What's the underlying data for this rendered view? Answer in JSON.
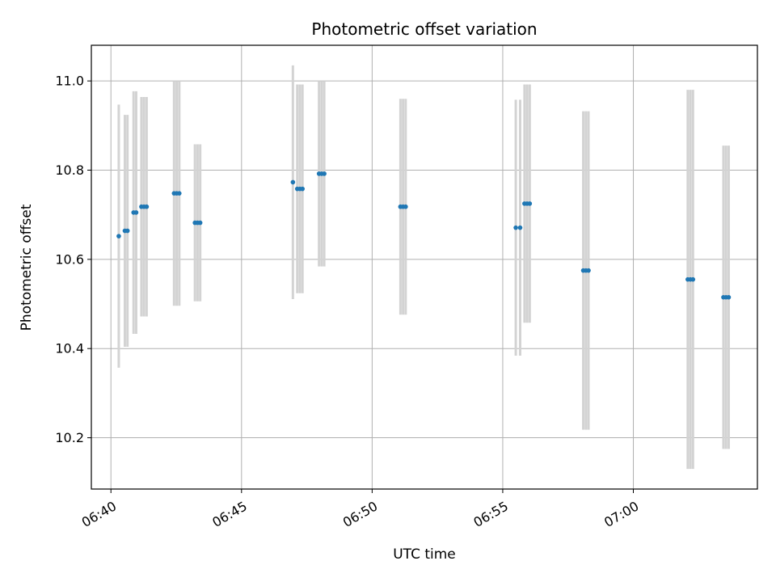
{
  "chart_data": {
    "type": "scatter",
    "title": "Photometric offset variation",
    "xlabel": "UTC time",
    "ylabel": "Photometric offset",
    "xlim": [
      "06:39:15",
      "07:04:45"
    ],
    "ylim": [
      10.085,
      11.08
    ],
    "x_ticks": [
      "06:40",
      "06:45",
      "06:50",
      "06:55",
      "07:00"
    ],
    "y_ticks": [
      "10.2",
      "10.4",
      "10.6",
      "10.8",
      "11.0"
    ],
    "grid": true,
    "colors": {
      "point": "#1f77b4",
      "errorbar": "#d3d3d3",
      "grid": "#b0b0b0"
    },
    "series": [
      {
        "points": [
          {
            "t": "06:40:18",
            "y": 10.652,
            "err": 0.295
          },
          {
            "t": "06:40:32",
            "y": 10.664,
            "err": 0.26
          },
          {
            "t": "06:40:38",
            "y": 10.664,
            "err": 0.26
          },
          {
            "t": "06:40:52",
            "y": 10.705,
            "err": 0.272
          },
          {
            "t": "06:40:58",
            "y": 10.705,
            "err": 0.272
          },
          {
            "t": "06:41:10",
            "y": 10.718,
            "err": 0.246
          },
          {
            "t": "06:41:16",
            "y": 10.718,
            "err": 0.246
          },
          {
            "t": "06:41:22",
            "y": 10.718,
            "err": 0.246
          },
          {
            "t": "06:42:25",
            "y": 10.748,
            "err": 0.252
          },
          {
            "t": "06:42:31",
            "y": 10.748,
            "err": 0.252
          },
          {
            "t": "06:42:37",
            "y": 10.748,
            "err": 0.252
          },
          {
            "t": "06:43:13",
            "y": 10.682,
            "err": 0.176
          },
          {
            "t": "06:43:19",
            "y": 10.682,
            "err": 0.176
          },
          {
            "t": "06:43:25",
            "y": 10.682,
            "err": 0.176
          },
          {
            "t": "06:46:58",
            "y": 10.773,
            "err": 0.262
          },
          {
            "t": "06:47:08",
            "y": 10.758,
            "err": 0.234
          },
          {
            "t": "06:47:14",
            "y": 10.758,
            "err": 0.234
          },
          {
            "t": "06:47:20",
            "y": 10.758,
            "err": 0.234
          },
          {
            "t": "06:47:58",
            "y": 10.792,
            "err": 0.208
          },
          {
            "t": "06:48:04",
            "y": 10.792,
            "err": 0.208
          },
          {
            "t": "06:48:10",
            "y": 10.792,
            "err": 0.208
          },
          {
            "t": "06:51:05",
            "y": 10.718,
            "err": 0.242
          },
          {
            "t": "06:51:11",
            "y": 10.718,
            "err": 0.242
          },
          {
            "t": "06:51:17",
            "y": 10.718,
            "err": 0.242
          },
          {
            "t": "06:55:30",
            "y": 10.671,
            "err": 0.287
          },
          {
            "t": "06:55:40",
            "y": 10.671,
            "err": 0.287
          },
          {
            "t": "06:55:50",
            "y": 10.725,
            "err": 0.267
          },
          {
            "t": "06:55:56",
            "y": 10.725,
            "err": 0.267
          },
          {
            "t": "06:56:02",
            "y": 10.725,
            "err": 0.267
          },
          {
            "t": "06:58:05",
            "y": 10.575,
            "err": 0.357
          },
          {
            "t": "06:58:11",
            "y": 10.575,
            "err": 0.357
          },
          {
            "t": "06:58:17",
            "y": 10.575,
            "err": 0.357
          },
          {
            "t": "07:02:05",
            "y": 10.555,
            "err": 0.425
          },
          {
            "t": "07:02:11",
            "y": 10.555,
            "err": 0.425
          },
          {
            "t": "07:02:17",
            "y": 10.555,
            "err": 0.425
          },
          {
            "t": "07:03:27",
            "y": 10.515,
            "err": 0.34
          },
          {
            "t": "07:03:33",
            "y": 10.515,
            "err": 0.34
          },
          {
            "t": "07:03:39",
            "y": 10.515,
            "err": 0.34
          }
        ]
      }
    ]
  }
}
